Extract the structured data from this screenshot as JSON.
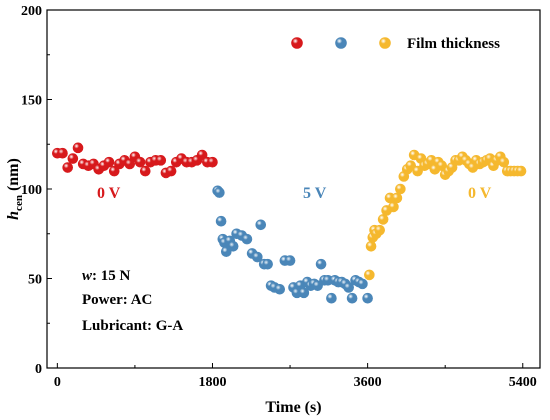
{
  "chart_data": {
    "type": "scatter",
    "title": "",
    "xlabel": "Time (s)",
    "ylabel_main": "h",
    "ylabel_sub": "cen",
    "ylabel_unit": " (nm)",
    "xlim": [
      -120,
      5600
    ],
    "ylim": [
      0,
      200
    ],
    "xticks": [
      0,
      1800,
      3600,
      5400
    ],
    "yticks": [
      0,
      50,
      100,
      150,
      200
    ],
    "grid": false,
    "legend": {
      "placement": "top-right",
      "label": "Film thickness"
    },
    "colors": {
      "red": "#d7191c",
      "blue": "#4a86b8",
      "yellow": "#f5b82e"
    },
    "series": [
      {
        "color": "red",
        "label": "0 V",
        "x": [
          0,
          60,
          120,
          180,
          240,
          300,
          360,
          420,
          480,
          540,
          600,
          660,
          720,
          780,
          840,
          900,
          960,
          1020,
          1080,
          1140,
          1200,
          1260,
          1320,
          1380,
          1440,
          1500,
          1560,
          1620,
          1680,
          1740,
          1800
        ],
        "y": [
          120,
          120,
          112,
          117,
          123,
          114,
          113,
          114,
          111,
          113,
          115,
          110,
          114,
          116,
          114,
          118,
          115,
          110,
          115,
          116,
          116,
          109,
          110,
          115,
          117,
          115,
          115,
          116,
          119,
          115,
          115
        ]
      },
      {
        "color": "blue",
        "label": "5 V",
        "x": [
          1860,
          1880,
          1900,
          1920,
          1940,
          1960,
          2000,
          2040,
          2080,
          2140,
          2200,
          2260,
          2320,
          2360,
          2400,
          2440,
          2480,
          2520,
          2580,
          2640,
          2700,
          2740,
          2780,
          2820,
          2860,
          2900,
          2940,
          2980,
          3020,
          3060,
          3100,
          3140,
          3180,
          3220,
          3260,
          3300,
          3340,
          3380,
          3420,
          3460,
          3500,
          3540,
          3600
        ],
        "y": [
          99,
          98,
          82,
          72,
          70,
          65,
          71,
          68,
          75,
          74,
          72,
          64,
          62,
          80,
          58,
          58,
          46,
          45,
          44,
          60,
          60,
          45,
          42,
          46,
          42,
          48,
          46,
          47,
          46,
          58,
          49,
          49,
          39,
          49,
          48,
          48,
          47,
          45,
          39,
          49,
          48,
          47,
          39
        ]
      },
      {
        "color": "yellow",
        "label": "0 V",
        "x": [
          3620,
          3640,
          3660,
          3680,
          3700,
          3740,
          3780,
          3820,
          3860,
          3900,
          3940,
          3980,
          4020,
          4060,
          4100,
          4140,
          4180,
          4220,
          4260,
          4300,
          4340,
          4380,
          4420,
          4460,
          4500,
          4540,
          4580,
          4620,
          4660,
          4700,
          4740,
          4780,
          4820,
          4860,
          4900,
          4940,
          4980,
          5020,
          5060,
          5100,
          5140,
          5180,
          5220,
          5260,
          5300,
          5340,
          5380
        ],
        "y": [
          52,
          68,
          73,
          77,
          75,
          77,
          83,
          88,
          95,
          90,
          95,
          100,
          107,
          111,
          113,
          119,
          110,
          117,
          113,
          114,
          116,
          111,
          115,
          113,
          108,
          110,
          112,
          116,
          116,
          118,
          116,
          114,
          112,
          116,
          114,
          115,
          116,
          117,
          113,
          116,
          118,
          115,
          110,
          110,
          110,
          110,
          110
        ]
      }
    ],
    "region_labels": [
      {
        "text": "0 V",
        "color": "red",
        "x": 1500,
        "y": 98
      },
      {
        "text": "5 V",
        "color": "blue",
        "x": 1820,
        "y": 98
      },
      {
        "text": "0 V",
        "color": "yellow",
        "x": 4250,
        "y": 98
      }
    ],
    "annotations": [
      {
        "label": "w",
        "value": ": 15 N"
      },
      {
        "label": "",
        "value": "Power: AC"
      },
      {
        "label": "",
        "value": "Lubricant: G-A"
      }
    ]
  }
}
